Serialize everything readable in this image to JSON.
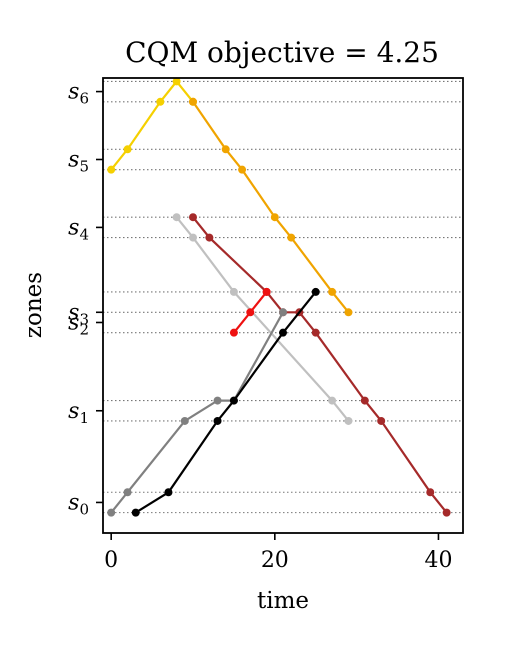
{
  "chart_data": {
    "type": "line",
    "title": "CQM objective = 4.25",
    "xlabel": "time",
    "ylabel": "zones",
    "xlim": [
      -1,
      43
    ],
    "ylim": [
      -0.45,
      6.25
    ],
    "xticks": [
      0,
      20,
      40
    ],
    "yticks": [
      {
        "base": "s",
        "sub": "0",
        "value": 0
      },
      {
        "base": "s",
        "sub": "1",
        "value": 1.35
      },
      {
        "base": "s",
        "sub": "2",
        "value": 2.65
      },
      {
        "base": "s",
        "sub": "3",
        "value": 2.8
      },
      {
        "base": "s",
        "sub": "4",
        "value": 4.05
      },
      {
        "base": "s",
        "sub": "5",
        "value": 5.05
      },
      {
        "base": "s",
        "sub": "6",
        "value": 6.05
      }
    ],
    "gridlines": [
      -0.15,
      0.15,
      1.2,
      1.5,
      2.5,
      2.8,
      3.1,
      3.9,
      4.2,
      4.9,
      5.2,
      5.9,
      6.2
    ],
    "grid": true,
    "series": [
      {
        "color": "#f5d000",
        "x": [
          0,
          2,
          6,
          8,
          10
        ],
        "y": [
          4.9,
          5.2,
          5.9,
          6.2,
          5.9
        ]
      },
      {
        "color": "#f0a400",
        "x": [
          10,
          14,
          16,
          20,
          22,
          27,
          29
        ],
        "y": [
          5.9,
          5.2,
          4.9,
          4.2,
          3.9,
          3.1,
          2.8
        ]
      },
      {
        "color": "#c0c0c0",
        "x": [
          8,
          10,
          15,
          27,
          29
        ],
        "y": [
          4.2,
          3.9,
          3.1,
          1.5,
          1.2
        ]
      },
      {
        "color": "#a52a2a",
        "x": [
          10,
          12,
          19,
          21,
          23,
          25,
          31,
          33,
          39,
          41
        ],
        "y": [
          4.2,
          3.9,
          3.1,
          2.8,
          2.8,
          2.5,
          1.5,
          1.2,
          0.15,
          -0.15
        ]
      },
      {
        "color": "#ee1111",
        "x": [
          15,
          17,
          19
        ],
        "y": [
          2.5,
          2.8,
          3.1
        ]
      },
      {
        "color": "#808080",
        "x": [
          0,
          2,
          9,
          13,
          15,
          21
        ],
        "y": [
          -0.15,
          0.15,
          1.2,
          1.5,
          1.5,
          2.8
        ]
      },
      {
        "color": "#000000",
        "x": [
          3,
          7,
          13,
          15,
          21,
          25
        ],
        "y": [
          -0.15,
          0.15,
          1.2,
          1.5,
          2.5,
          3.1
        ]
      }
    ]
  }
}
